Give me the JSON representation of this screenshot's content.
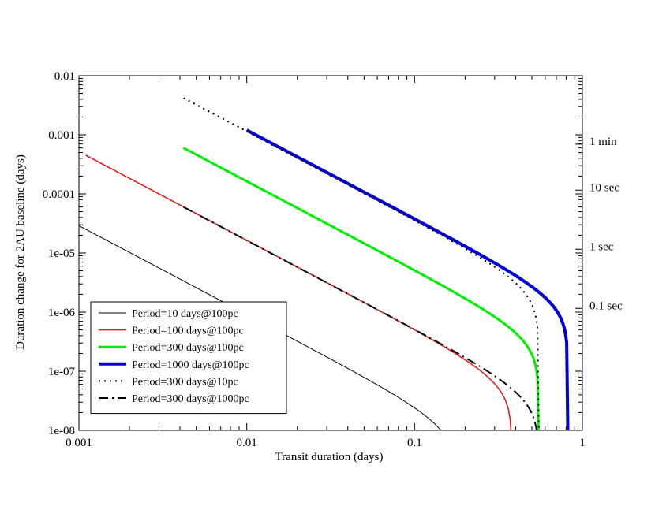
{
  "chart_data": {
    "type": "line",
    "title": "",
    "xlabel": "Transit duration (days)",
    "ylabel": "Duration change for 2AU baseline (days)",
    "xscale": "log",
    "yscale": "log",
    "xlim": [
      0.001,
      1
    ],
    "ylim": [
      1e-08,
      0.01
    ],
    "x_ticks": [
      {
        "value": 0.001,
        "label": "0.001"
      },
      {
        "value": 0.01,
        "label": "0.01"
      },
      {
        "value": 0.1,
        "label": "0.1"
      },
      {
        "value": 1,
        "label": "1"
      }
    ],
    "y_ticks": [
      {
        "value": 0.01,
        "label": "0.01"
      },
      {
        "value": 0.001,
        "label": "0.001"
      },
      {
        "value": 0.0001,
        "label": "0.0001"
      },
      {
        "value": 1e-05,
        "label": "1e-05"
      },
      {
        "value": 1e-06,
        "label": "1e-06"
      },
      {
        "value": 1e-07,
        "label": "1e-07"
      },
      {
        "value": 1e-08,
        "label": "1e-08"
      }
    ],
    "right_labels": [
      {
        "value": 0.000694,
        "label": "1 min"
      },
      {
        "value": 0.0001157,
        "label": "10 sec"
      },
      {
        "value": 1.157e-05,
        "label": "1 sec"
      },
      {
        "value": 1.157e-06,
        "label": "0.1 sec"
      }
    ],
    "legend_position": "bottom-left",
    "series": [
      {
        "name": "Period=10 days@100pc",
        "color": "#000000",
        "width": 1,
        "dash": "solid",
        "x_start": 0.001,
        "x_max": 0.178,
        "a": 2.9e-05,
        "slope": -1.5
      },
      {
        "name": "Period=100 days@100pc",
        "color": "#e0201e",
        "width": 1.6,
        "dash": "solid",
        "x_start": 0.0011,
        "x_max": 0.38,
        "a": 0.00045,
        "slope": -1.5
      },
      {
        "name": "Period=300 days@100pc",
        "color": "#00ee00",
        "width": 3,
        "dash": "solid",
        "x_start": 0.0042,
        "x_max": 0.55,
        "a": 0.0006,
        "slope": -1.5
      },
      {
        "name": "Period=1000 days@100pc",
        "color": "#0000dd",
        "width": 4,
        "dash": "solid",
        "x_start": 0.01,
        "x_max": 0.82,
        "a": 0.0012,
        "slope": -1.5
      },
      {
        "name": "Period=300 days@10pc",
        "color": "#000000",
        "width": 2,
        "dash": "2,5",
        "x_start": 0.0042,
        "x_max": 0.55,
        "a": 0.0042,
        "slope": -1.5
      },
      {
        "name": "Period=300 days@1000pc",
        "color": "#000000",
        "width": 2,
        "dash": "12,5,2,5",
        "x_start": 0.0042,
        "x_max": 0.55,
        "a": 6e-05,
        "slope": -1.5
      }
    ]
  }
}
